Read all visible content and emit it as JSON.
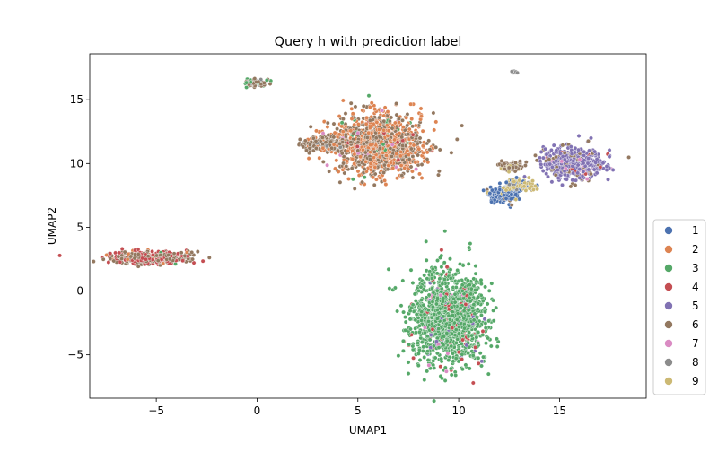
{
  "chart_data": {
    "type": "scatter",
    "title": "Query h with prediction label",
    "xlabel": "UMAP1",
    "ylabel": "UMAP2",
    "xlim": [
      -8.3,
      19.3
    ],
    "ylim": [
      -8.4,
      18.6
    ],
    "xticks": [
      -5,
      0,
      5,
      10,
      15
    ],
    "yticks": [
      -5,
      0,
      5,
      10,
      15
    ],
    "xtick_labels": [
      "−5",
      "0",
      "5",
      "10",
      "15"
    ],
    "ytick_labels": [
      "−5",
      "0",
      "5",
      "10",
      "15"
    ],
    "grid": false,
    "legend_position": "right-bottom, outside plot",
    "series": [
      {
        "name": "1",
        "color": "#4c72b0"
      },
      {
        "name": "2",
        "color": "#dd8452"
      },
      {
        "name": "3",
        "color": "#55a868"
      },
      {
        "name": "4",
        "color": "#c44e52"
      },
      {
        "name": "5",
        "color": "#8172b3"
      },
      {
        "name": "6",
        "color": "#937860"
      },
      {
        "name": "7",
        "color": "#da8bc3"
      },
      {
        "name": "8",
        "color": "#8c8c8c"
      },
      {
        "name": "9",
        "color": "#ccb974"
      }
    ],
    "clusters": [
      {
        "label": "green blob (mostly 3)",
        "cx": 9.5,
        "cy": -2.0,
        "rx": 1.6,
        "ry": 3.2,
        "n": 1500,
        "mix": {
          "3": 0.9,
          "4": 0.05,
          "5": 0.03,
          "7": 0.02
        }
      },
      {
        "label": "orange/brown blob (2 and 6)",
        "cx": 6.0,
        "cy": 11.5,
        "rx": 2.0,
        "ry": 2.1,
        "n": 1300,
        "mix": {
          "2": 0.5,
          "6": 0.42,
          "3": 0.03,
          "4": 0.03,
          "7": 0.02
        }
      },
      {
        "label": "left tail",
        "cx": 3.3,
        "cy": 11.5,
        "rx": 1.0,
        "ry": 0.5,
        "n": 150,
        "mix": {
          "6": 0.8,
          "2": 0.15,
          "8": 0.05
        }
      },
      {
        "label": "left elongated cluster",
        "cx": -5.3,
        "cy": 2.6,
        "rx": 1.7,
        "ry": 0.45,
        "n": 450,
        "mix": {
          "6": 0.6,
          "4": 0.3,
          "3": 0.05,
          "2": 0.05
        }
      },
      {
        "label": "top small diagonal cluster",
        "cx": 0.0,
        "cy": 16.3,
        "rx": 0.6,
        "ry": 0.3,
        "n": 60,
        "mix": {
          "6": 0.6,
          "8": 0.2,
          "3": 0.2
        }
      },
      {
        "label": "right purple cluster (5)",
        "cx": 15.7,
        "cy": 10.0,
        "rx": 1.3,
        "ry": 1.1,
        "n": 600,
        "mix": {
          "5": 0.75,
          "6": 0.15,
          "4": 0.05,
          "7": 0.05
        }
      },
      {
        "label": "blue cluster (1)",
        "cx": 12.2,
        "cy": 7.6,
        "rx": 0.6,
        "ry": 0.6,
        "n": 200,
        "mix": {
          "1": 0.85,
          "9": 0.1,
          "6": 0.05
        }
      },
      {
        "label": "yellow cluster (9)",
        "cx": 13.0,
        "cy": 8.3,
        "rx": 0.7,
        "ry": 0.4,
        "n": 120,
        "mix": {
          "9": 0.6,
          "1": 0.3,
          "8": 0.1
        }
      },
      {
        "label": "brown small cluster",
        "cx": 12.6,
        "cy": 9.8,
        "rx": 0.6,
        "ry": 0.3,
        "n": 120,
        "mix": {
          "6": 0.85,
          "9": 0.15
        }
      },
      {
        "label": "grey top-right",
        "cx": 12.8,
        "cy": 17.2,
        "rx": 0.15,
        "ry": 0.1,
        "n": 10,
        "mix": {
          "8": 1.0
        }
      }
    ]
  }
}
